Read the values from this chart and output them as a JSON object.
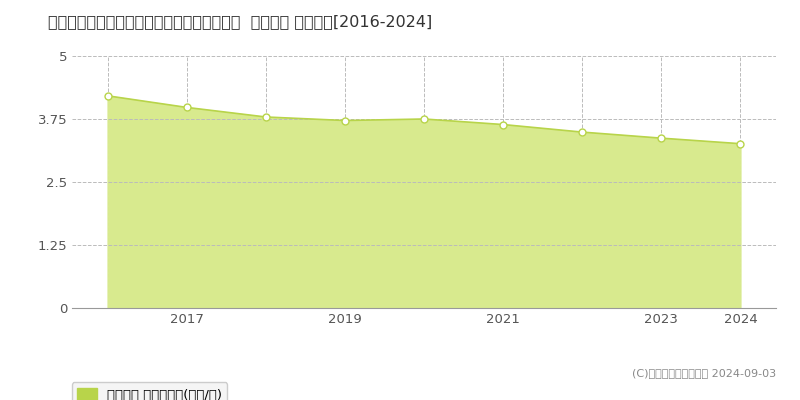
{
  "title": "愛知県知多郡南知多町大字山海字小山８９番  地価公示 地価推移[2016-2024]",
  "years": [
    2016,
    2017,
    2018,
    2019,
    2020,
    2021,
    2022,
    2023,
    2024
  ],
  "values": [
    4.21,
    3.98,
    3.79,
    3.72,
    3.75,
    3.64,
    3.49,
    3.37,
    3.26
  ],
  "line_color": "#b8d44a",
  "fill_color": "#d8ea8e",
  "marker_color": "#ffffff",
  "marker_edge_color": "#b8d44a",
  "ylim": [
    0,
    5
  ],
  "yticks": [
    0,
    1.25,
    2.5,
    3.75,
    5
  ],
  "ytick_labels": [
    "0",
    "1.25",
    "2.5",
    "3.75",
    "5"
  ],
  "background_color": "#ffffff",
  "grid_color": "#bbbbbb",
  "xlabel_ticks": [
    2017,
    2019,
    2021,
    2023,
    2024
  ],
  "legend_label": "地価公示 平均坪単価(万円/坪)",
  "legend_color": "#b8d44a",
  "copyright_text": "(C)土地価格ドットコム 2024-09-03",
  "title_fontsize": 11.5,
  "tick_fontsize": 9.5,
  "legend_fontsize": 9.5
}
